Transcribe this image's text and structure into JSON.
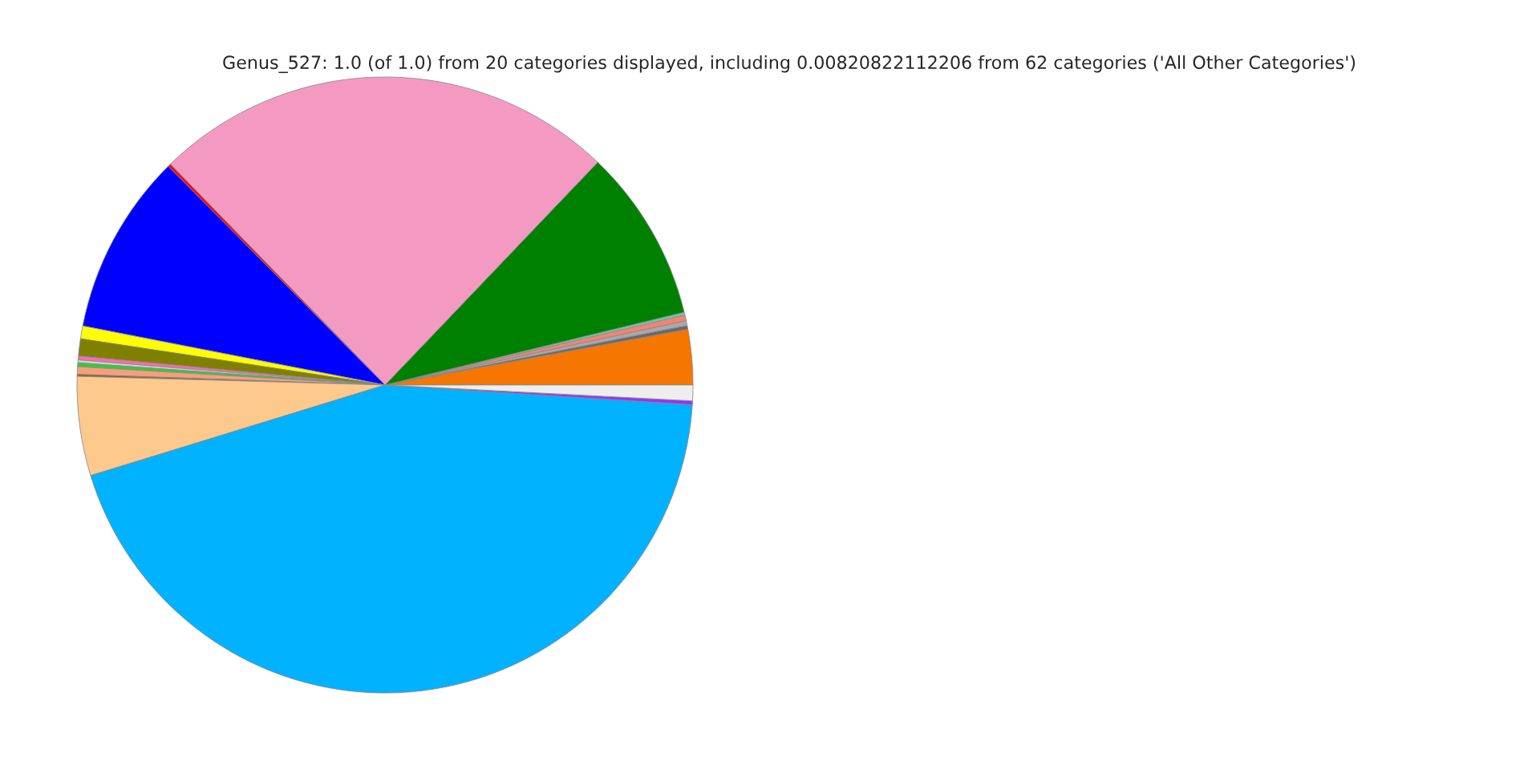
{
  "chart_data": {
    "type": "pie",
    "title": "Genus_527: 1.0 (of 1.0) from 20 categories displayed, including 0.00820822112206 from 62 categories ('All Other Categories')",
    "categories": [
      null,
      null,
      null,
      null,
      null,
      null,
      null,
      null,
      null,
      null,
      null,
      null,
      null,
      null,
      null,
      null,
      null,
      null,
      null,
      null
    ],
    "values": [
      2.9,
      0.2,
      0.25,
      0.3,
      0.15,
      9.06,
      24.4,
      0.15,
      9.5,
      0.67,
      0.9,
      0.2,
      0.15,
      0.2,
      0.4,
      0.1,
      5.2,
      44.21,
      0.2,
      0.82
    ],
    "colors": [
      "#f57600",
      "#696969",
      "#a9a9a9",
      "#fa8072",
      "#66cdaa",
      "#008000",
      "#f49ac2",
      "#ff0000",
      "#0000ff",
      "#ffff00",
      "#808000",
      "#ff69b4",
      "#d3d3d3",
      "#32cd32",
      "#f4a07a",
      "#a0522d",
      "#fec98d",
      "#00b2ff",
      "#9b30ff",
      "#eeeeee"
    ],
    "legend": false
  }
}
